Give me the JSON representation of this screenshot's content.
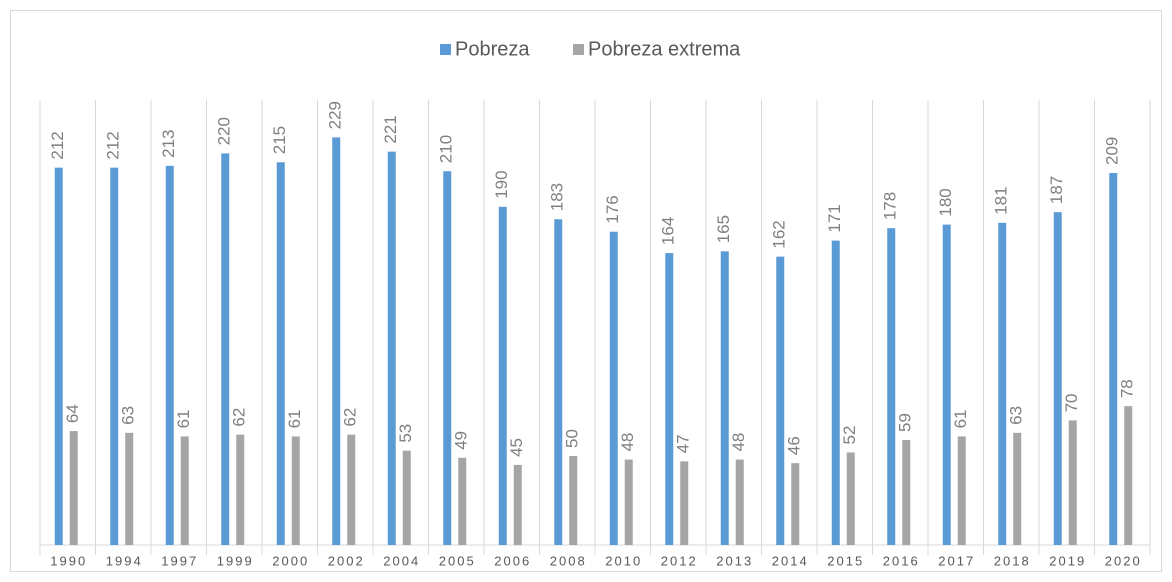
{
  "chart_data": {
    "type": "bar",
    "categories": [
      "1990",
      "1994",
      "1997",
      "1999",
      "2000",
      "2002",
      "2004",
      "2005",
      "2006",
      "2008",
      "2010",
      "2012",
      "2013",
      "2014",
      "2015",
      "2016",
      "2017",
      "2018",
      "2019",
      "2020"
    ],
    "series": [
      {
        "name": "Pobreza",
        "color": "#5b9bd5",
        "values": [
          212,
          212,
          213,
          220,
          215,
          229,
          221,
          210,
          190,
          183,
          176,
          164,
          165,
          162,
          171,
          178,
          180,
          181,
          187,
          209
        ]
      },
      {
        "name": "Pobreza extrema",
        "color": "#a5a5a5",
        "values": [
          64,
          63,
          61,
          62,
          61,
          62,
          53,
          49,
          45,
          50,
          48,
          47,
          48,
          46,
          52,
          59,
          61,
          63,
          70,
          78
        ]
      }
    ],
    "ylim": [
      0,
      250
    ],
    "legend": "top"
  }
}
